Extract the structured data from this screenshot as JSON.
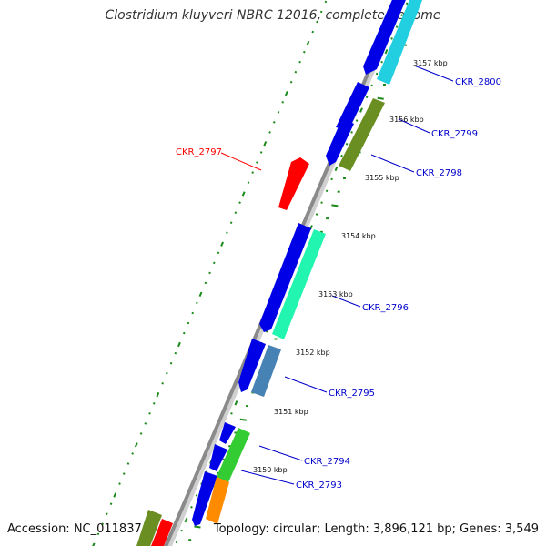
{
  "title": "Clostridium kluyveri NBRC 12016, complete genome",
  "accession": "Accession: NC_011837",
  "summary": "Topology: circular; Length: 3,896,121 bp; Genes: 3,549",
  "scale_labels": [
    {
      "id": "t3157",
      "text": "3157 kbp"
    },
    {
      "id": "t3156",
      "text": "3156 kbp"
    },
    {
      "id": "t3155",
      "text": "3155 kbp"
    },
    {
      "id": "t3154",
      "text": "3154 kbp"
    },
    {
      "id": "t3153",
      "text": "3153 kbp"
    },
    {
      "id": "t3152",
      "text": "3152 kbp"
    },
    {
      "id": "t3151",
      "text": "3151 kbp"
    },
    {
      "id": "t3150",
      "text": "3150 kbp"
    }
  ],
  "gene_labels": [
    {
      "id": "g2800",
      "text": "CKR_2800",
      "color": "#0000cc"
    },
    {
      "id": "g2799",
      "text": "CKR_2799",
      "color": "#0000cc"
    },
    {
      "id": "g2798",
      "text": "CKR_2798",
      "color": "#0000cc"
    },
    {
      "id": "g2797",
      "text": "CKR_2797",
      "color": "#ff0000"
    },
    {
      "id": "g2796",
      "text": "CKR_2796",
      "color": "#0000cc"
    },
    {
      "id": "g2795",
      "text": "CKR_2795",
      "color": "#0000cc"
    },
    {
      "id": "g2794",
      "text": "CKR_2794",
      "color": "#0000cc"
    },
    {
      "id": "g2793",
      "text": "CKR_2793",
      "color": "#0000cc"
    }
  ],
  "colors": {
    "backbone": "#8a8a8a",
    "cds_blue": "#0000e6",
    "cyan": "#22cfe0",
    "olive": "#6b8e23",
    "red": "#ff0000",
    "aquamarine": "#22f5b0",
    "steelblue": "#4682b4",
    "green": "#33cc33",
    "orange": "#ff8c00",
    "tick_green": "#1b8a1b"
  }
}
